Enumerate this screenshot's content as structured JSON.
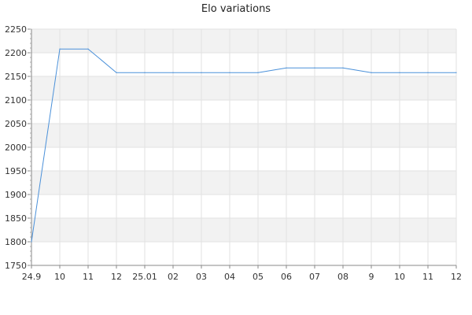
{
  "chart_data": {
    "type": "line",
    "title": "Elo variations",
    "xlabel": "",
    "ylabel": "",
    "x_ticks": [
      "24.9",
      "10",
      "11",
      "12",
      "25.01",
      "02",
      "03",
      "04",
      "05",
      "06",
      "07",
      "08",
      "9",
      "10",
      "11",
      "12"
    ],
    "ylim": [
      1750,
      2250
    ],
    "y_ticks": [
      1750,
      1800,
      1850,
      1900,
      1950,
      2000,
      2050,
      2100,
      2150,
      2200,
      2250
    ],
    "grid": true,
    "series": [
      {
        "color": "#4a90d9",
        "points": [
          {
            "x": 0,
            "y": 1800
          },
          {
            "x": 1,
            "y": 2208
          },
          {
            "x": 2,
            "y": 2208
          },
          {
            "x": 3,
            "y": 2158
          },
          {
            "x": 4,
            "y": 2158
          },
          {
            "x": 5,
            "y": 2158
          },
          {
            "x": 6,
            "y": 2158
          },
          {
            "x": 7,
            "y": 2158
          },
          {
            "x": 8,
            "y": 2158
          },
          {
            "x": 9,
            "y": 2168
          },
          {
            "x": 10,
            "y": 2168
          },
          {
            "x": 11,
            "y": 2168
          },
          {
            "x": 12,
            "y": 2158
          },
          {
            "x": 13,
            "y": 2158
          },
          {
            "x": 14,
            "y": 2158
          },
          {
            "x": 15,
            "y": 2158
          }
        ]
      }
    ]
  }
}
